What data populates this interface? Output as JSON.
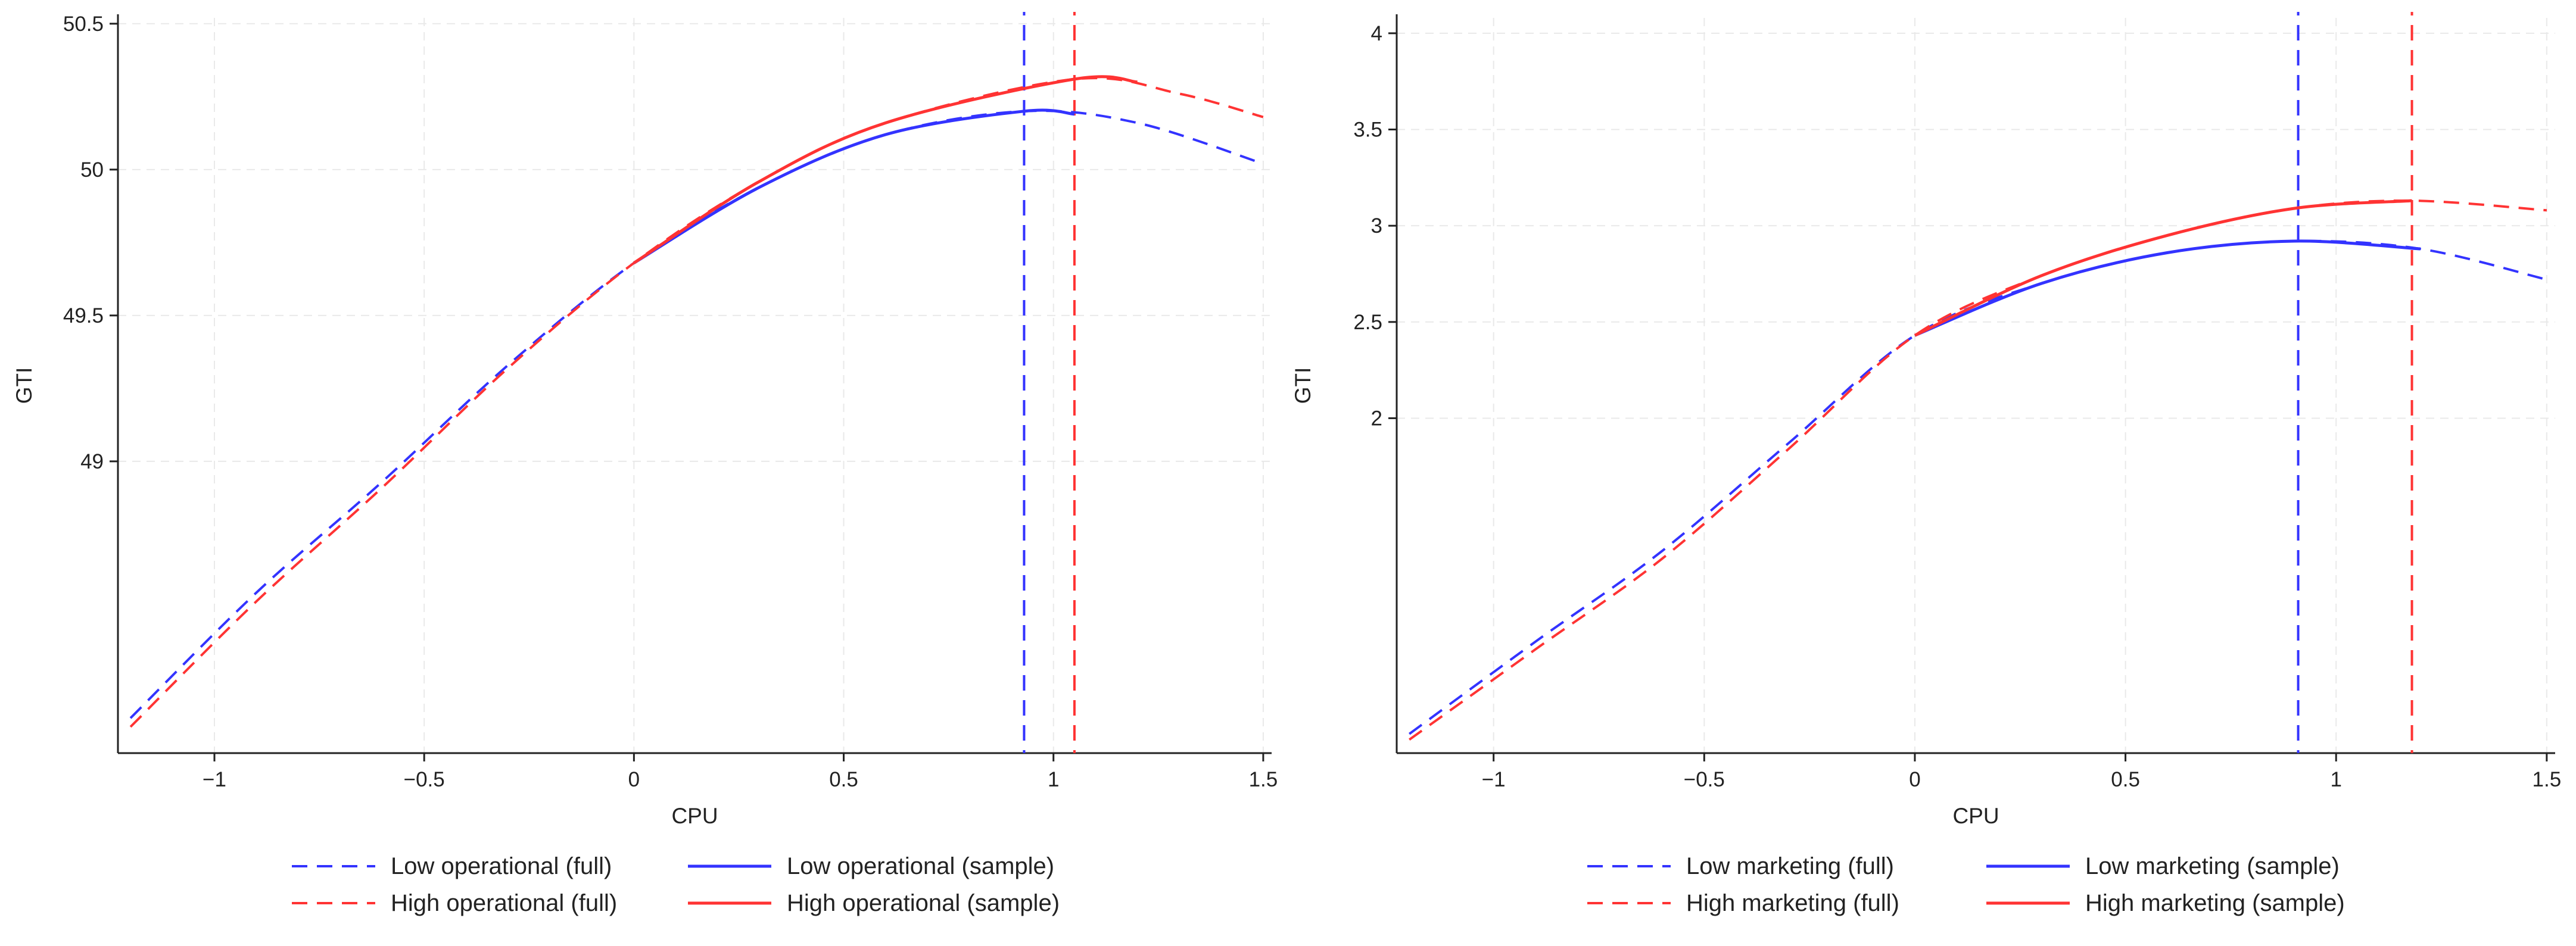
{
  "colors": {
    "low": "#3333ff",
    "high": "#ff3333",
    "axis": "#222222",
    "grid": "#e9e9e9"
  },
  "chart_data": [
    {
      "type": "line",
      "title": "",
      "xlabel": "CPU",
      "ylabel": "GTI",
      "xlim": [
        -1.23,
        1.52
      ],
      "ylim": [
        48.0,
        50.52
      ],
      "xticks": [
        -1,
        -0.5,
        0,
        0.5,
        1,
        1.5
      ],
      "xtick_labels": [
        "−1",
        "−0.5",
        "0",
        "0.5",
        "1",
        "1.5"
      ],
      "yticks": [
        49,
        49.5,
        50,
        50.5
      ],
      "ytick_labels": [
        "49",
        "49.5",
        "50",
        "50.5"
      ],
      "grid": true,
      "legend_position": "bottom",
      "series": [
        {
          "name": "Low operational (full)",
          "color": "low",
          "style": "dashed",
          "x": [
            -1.2,
            -0.9,
            -0.6,
            -0.3,
            0,
            0.3,
            0.6,
            0.93,
            1.2,
            1.5
          ],
          "y": [
            48.12,
            48.55,
            48.93,
            49.33,
            49.68,
            49.94,
            50.12,
            50.2,
            50.16,
            50.02
          ]
        },
        {
          "name": "High operational (full)",
          "color": "high",
          "style": "dashed",
          "x": [
            -1.2,
            -0.9,
            -0.6,
            -0.3,
            0,
            0.3,
            0.6,
            1.05,
            1.3,
            1.5
          ],
          "y": [
            48.09,
            48.52,
            48.91,
            49.32,
            49.68,
            49.96,
            50.16,
            50.31,
            50.26,
            50.18
          ]
        },
        {
          "name": "Low operational (sample)",
          "color": "low",
          "style": "solid",
          "x": [
            0,
            0.3,
            0.6,
            0.93,
            1.05
          ],
          "y": [
            49.68,
            49.94,
            50.12,
            50.2,
            50.19
          ]
        },
        {
          "name": "High operational (sample)",
          "color": "high",
          "style": "solid",
          "x": [
            0,
            0.3,
            0.6,
            1.05,
            1.2
          ],
          "y": [
            49.68,
            49.96,
            50.16,
            50.31,
            50.3
          ]
        }
      ],
      "vlines": [
        {
          "x": 0.93,
          "color": "low",
          "style": "dashed"
        },
        {
          "x": 1.05,
          "color": "high",
          "style": "dashed"
        }
      ],
      "legend": [
        {
          "series": 0,
          "label": "Low operational (full)"
        },
        {
          "series": 2,
          "label": "Low operational (sample)"
        },
        {
          "series": 1,
          "label": "High operational (full)"
        },
        {
          "series": 3,
          "label": "High operational (sample)"
        }
      ]
    },
    {
      "type": "line",
      "title": "",
      "xlabel": "CPU",
      "ylabel": "GTI",
      "xlim": [
        -1.23,
        1.52
      ],
      "ylim": [
        0.26,
        4.08
      ],
      "xticks": [
        -1,
        -0.5,
        0,
        0.5,
        1,
        1.5
      ],
      "xtick_labels": [
        "−1",
        "−0.5",
        "0",
        "0.5",
        "1",
        "1.5"
      ],
      "yticks": [
        2,
        2.5,
        3,
        3.5,
        4
      ],
      "ytick_labels": [
        "2",
        "2.5",
        "3",
        "3.5",
        "4"
      ],
      "grid": true,
      "legend_position": "bottom",
      "series": [
        {
          "name": "Low marketing (full)",
          "color": "low",
          "style": "dashed",
          "x": [
            -1.2,
            -0.9,
            -0.6,
            -0.3,
            0,
            0.3,
            0.6,
            0.9,
            1.2,
            1.5
          ],
          "y": [
            0.36,
            0.84,
            1.31,
            1.87,
            2.43,
            2.7,
            2.86,
            2.92,
            2.88,
            2.72
          ]
        },
        {
          "name": "High marketing (full)",
          "color": "high",
          "style": "dashed",
          "x": [
            -1.2,
            -0.9,
            -0.6,
            -0.3,
            0,
            0.3,
            0.6,
            0.9,
            1.18,
            1.5
          ],
          "y": [
            0.33,
            0.8,
            1.27,
            1.84,
            2.43,
            2.74,
            2.95,
            3.09,
            3.13,
            3.08
          ]
        },
        {
          "name": "Low marketing (sample)",
          "color": "low",
          "style": "solid",
          "x": [
            0,
            0.3,
            0.6,
            0.9,
            1.2
          ],
          "y": [
            2.43,
            2.7,
            2.86,
            2.92,
            2.88
          ]
        },
        {
          "name": "High marketing (sample)",
          "color": "high",
          "style": "solid",
          "x": [
            0,
            0.3,
            0.6,
            0.9,
            1.18
          ],
          "y": [
            2.43,
            2.74,
            2.95,
            3.09,
            3.13
          ]
        }
      ],
      "vlines": [
        {
          "x": 0.91,
          "color": "low",
          "style": "dashed"
        },
        {
          "x": 1.18,
          "color": "high",
          "style": "dashed"
        }
      ],
      "legend": [
        {
          "series": 0,
          "label": "Low marketing (full)"
        },
        {
          "series": 2,
          "label": "Low marketing (sample)"
        },
        {
          "series": 1,
          "label": "High marketing (full)"
        },
        {
          "series": 3,
          "label": "High marketing (sample)"
        }
      ]
    }
  ]
}
